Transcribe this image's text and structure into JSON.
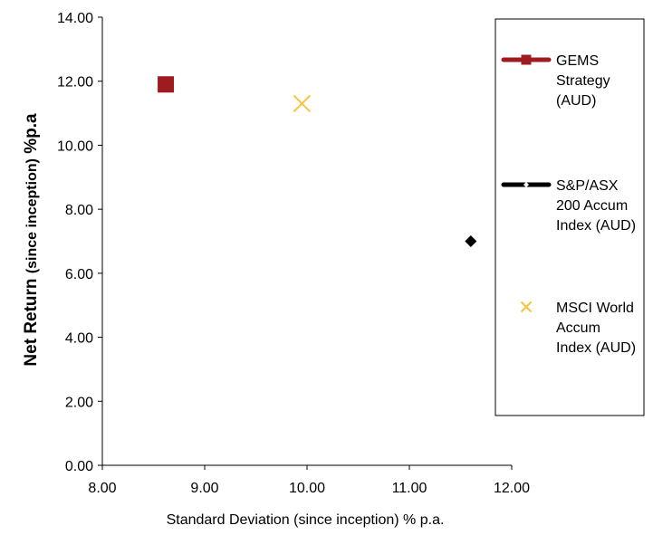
{
  "chart_data": {
    "type": "scatter",
    "title": "",
    "xlabel": "Standard Deviation (since inception) % p.a.",
    "ylabel": {
      "main": "Net Return ",
      "sub": "(since inception)",
      "tail": " %p.a"
    },
    "xlim": [
      8.0,
      12.0
    ],
    "ylim": [
      0.0,
      14.0
    ],
    "x_ticks": [
      "8.00",
      "9.00",
      "10.00",
      "11.00",
      "12.00"
    ],
    "y_ticks": [
      "0.00",
      "2.00",
      "4.00",
      "6.00",
      "8.00",
      "10.00",
      "12.00",
      "14.00"
    ],
    "grid": false,
    "legend_position": "right",
    "series": [
      {
        "name": "GEMS Strategy (AUD)",
        "legend_lines": [
          "GEMS",
          "Strategy",
          "(AUD)"
        ],
        "marker": "square",
        "color": "#9e1b20",
        "x": 8.62,
        "y": 11.9
      },
      {
        "name": "S&P/ASX 200 Accum Index (AUD)",
        "legend_lines": [
          "S&P/ASX",
          "200 Accum",
          "Index (AUD)"
        ],
        "marker": "diamond",
        "color": "#000000",
        "x": 11.6,
        "y": 7.0
      },
      {
        "name": "MSCI World Accum Index (AUD)",
        "legend_lines": [
          "MSCI World",
          "Accum",
          "Index (AUD)"
        ],
        "marker": "x",
        "color": "#f5c542",
        "x": 9.95,
        "y": 11.3
      }
    ]
  }
}
